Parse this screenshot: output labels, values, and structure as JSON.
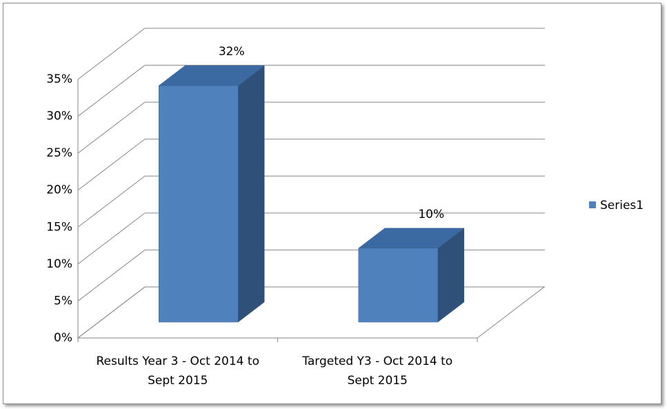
{
  "chart_data": {
    "type": "bar3d",
    "categories": [
      "Results Year 3 - Oct 2014 to Sept 2015",
      "Targeted Y3 - Oct 2014 to Sept 2015"
    ],
    "series": [
      {
        "name": "Series1",
        "color": "#4f81bd",
        "values": [
          32,
          10
        ],
        "value_labels": [
          "32%",
          "10%"
        ]
      }
    ],
    "ylim": [
      0,
      35
    ],
    "yticks": [
      {
        "value": 0,
        "label": "0%"
      },
      {
        "value": 5,
        "label": "5%"
      },
      {
        "value": 10,
        "label": "10%"
      },
      {
        "value": 15,
        "label": "15%"
      },
      {
        "value": 20,
        "label": "20%"
      },
      {
        "value": 25,
        "label": "25%"
      },
      {
        "value": 30,
        "label": "30%"
      },
      {
        "value": 35,
        "label": "35%"
      }
    ],
    "grid": true,
    "legend": "right"
  }
}
